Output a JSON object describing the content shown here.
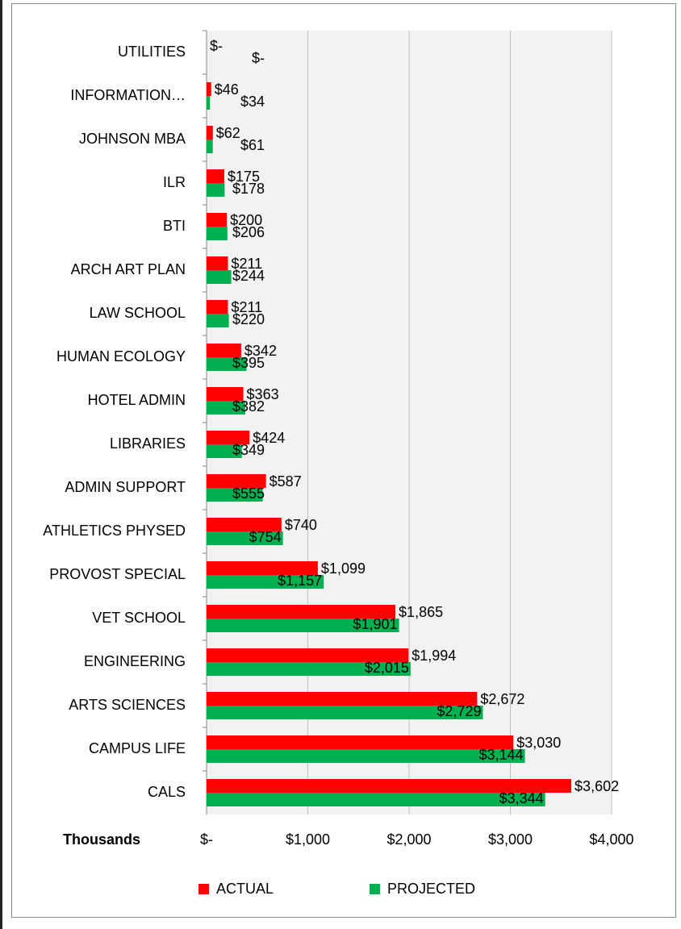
{
  "chart_data": {
    "type": "bar",
    "orientation": "horizontal",
    "categories": [
      "UTILITIES",
      "INFORMATION…",
      "JOHNSON MBA",
      "ILR",
      "BTI",
      "ARCH ART PLAN",
      "LAW SCHOOL",
      "HUMAN ECOLOGY",
      "HOTEL ADMIN",
      "LIBRARIES",
      "ADMIN SUPPORT",
      "ATHLETICS PHYSED",
      "PROVOST SPECIAL",
      "VET SCHOOL",
      "ENGINEERING",
      "ARTS SCIENCES",
      "CAMPUS LIFE",
      "CALS"
    ],
    "series": [
      {
        "name": "ACTUAL",
        "color": "#ff0000",
        "values": [
          0,
          46,
          62,
          175,
          200,
          211,
          211,
          342,
          363,
          424,
          587,
          740,
          1099,
          1865,
          1994,
          2672,
          3030,
          3602
        ],
        "value_labels": [
          "$-",
          "$46",
          "$62",
          "$175",
          "$200",
          "$211",
          "$211",
          "$342",
          "$363",
          "$424",
          "$587",
          "$740",
          "$1,099",
          "$1,865",
          "$1,994",
          "$2,672",
          "$3,030",
          "$3,602"
        ]
      },
      {
        "name": "PROJECTED",
        "color": "#00b050",
        "values": [
          0,
          34,
          61,
          178,
          206,
          244,
          220,
          395,
          382,
          349,
          555,
          754,
          1157,
          1901,
          2015,
          2729,
          3144,
          3344
        ],
        "value_labels": [
          "$-",
          "$34",
          "$61",
          "$178",
          "$206",
          "$244",
          "$220",
          "$395",
          "$382",
          "$349",
          "$555",
          "$754",
          "$1,157",
          "$1,901",
          "$2,015",
          "$2,729",
          "$3,144",
          "$3,344"
        ]
      }
    ],
    "x_axis_label": "Thousands",
    "xlim": [
      0,
      4000
    ],
    "xticks": [
      {
        "value": 0,
        "label": "$-"
      },
      {
        "value": 1000,
        "label": "$1,000"
      },
      {
        "value": 2000,
        "label": "$2,000"
      },
      {
        "value": 3000,
        "label": "$3,000"
      },
      {
        "value": 4000,
        "label": "$4,000"
      }
    ],
    "grid": true,
    "legend": "bottom"
  }
}
